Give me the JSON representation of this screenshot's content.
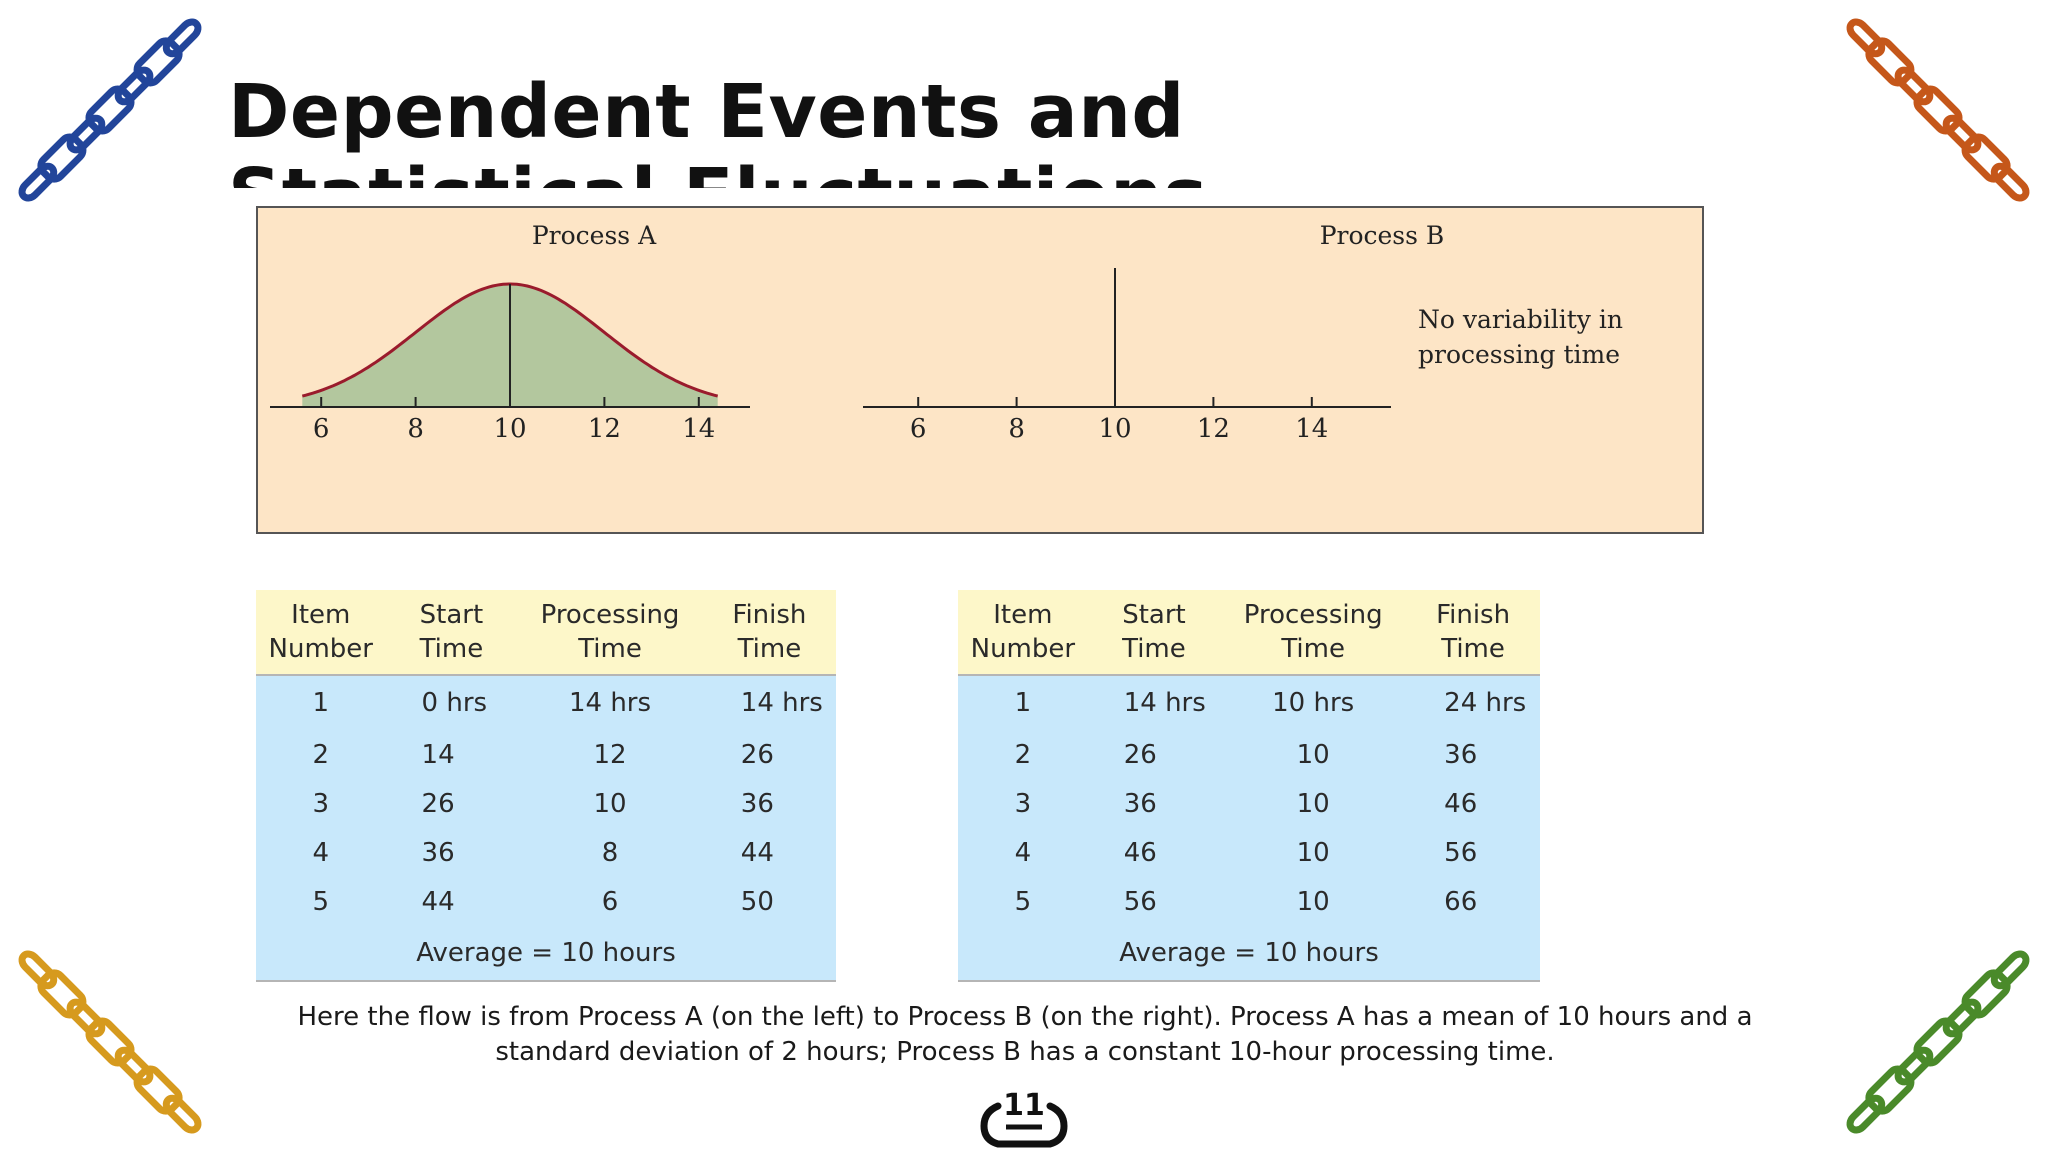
{
  "slide": {
    "title": "Dependent Events and Statistical Fluctuations",
    "caption": "Here the flow is from Process A (on the left) to Process B (on the right). Process A has a mean of 10 hours and a standard deviation of 2 hours; Process B has a constant 10-hour processing time.",
    "page_number": "11",
    "chain_colors": {
      "top_left": "#22459a",
      "top_right": "#c5571a",
      "bottom_left": "#d69a1e",
      "bottom_right": "#4a8a2a"
    }
  },
  "chart_data": [
    {
      "type": "area",
      "title": "Process A",
      "distribution": "normal",
      "mean": 10,
      "std_dev": 2,
      "x_ticks": [
        6,
        8,
        10,
        12,
        14
      ],
      "xlim": [
        5,
        15
      ],
      "fill_color": "#b3c79e",
      "line_color": "#9a1b2c"
    },
    {
      "type": "line",
      "title": "Process B",
      "spike_at": 10,
      "x_ticks": [
        6,
        8,
        10,
        12,
        14
      ],
      "xlim": [
        5,
        15
      ],
      "annotation": [
        "No variability in",
        "processing time"
      ]
    }
  ],
  "tables": {
    "process_a": {
      "headers": [
        [
          "Item",
          "Number"
        ],
        [
          "Start",
          "Time"
        ],
        [
          "Processing",
          "Time"
        ],
        [
          "Finish",
          "Time"
        ]
      ],
      "rows": [
        [
          "1",
          "0 hrs",
          "14 hrs",
          "14 hrs"
        ],
        [
          "2",
          "14",
          "12",
          "26"
        ],
        [
          "3",
          "26",
          "10",
          "36"
        ],
        [
          "4",
          "36",
          "8",
          "44"
        ],
        [
          "5",
          "44",
          "6",
          "50"
        ]
      ],
      "footer": "Average = 10 hours"
    },
    "process_b": {
      "headers": [
        [
          "Item",
          "Number"
        ],
        [
          "Start",
          "Time"
        ],
        [
          "Processing",
          "Time"
        ],
        [
          "Finish",
          "Time"
        ]
      ],
      "rows": [
        [
          "1",
          "14 hrs",
          "10 hrs",
          "24 hrs"
        ],
        [
          "2",
          "26",
          "10",
          "36"
        ],
        [
          "3",
          "36",
          "10",
          "46"
        ],
        [
          "4",
          "46",
          "10",
          "56"
        ],
        [
          "5",
          "56",
          "10",
          "66"
        ]
      ],
      "footer": "Average = 10 hours"
    }
  }
}
